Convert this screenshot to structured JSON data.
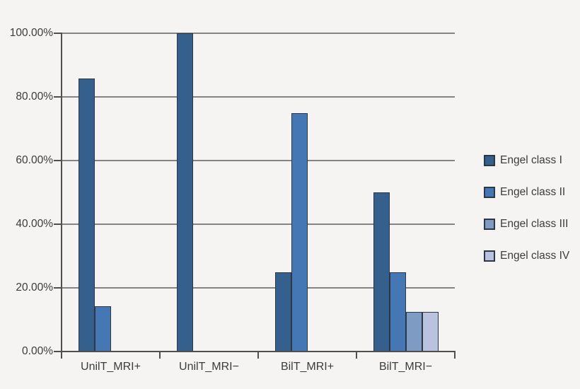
{
  "figure": {
    "background_color": "#F5F4F2",
    "axis_color": "#4F4F4F",
    "gridline_color": "#848484",
    "bar_outline_color": "#2C3744",
    "text_color": "#3C3C3C"
  },
  "chart_data": {
    "type": "bar",
    "title": "",
    "xlabel": "",
    "ylabel": "",
    "grid": true,
    "legend_position": "right",
    "categories": [
      "UnilT_MRI+",
      "UnilT_MRI−",
      "BilT_MRI+",
      "BilT_MRI−"
    ],
    "series": [
      {
        "name": "Engel class I",
        "color": "#35608E",
        "values": [
          85.7,
          100,
          25,
          50
        ]
      },
      {
        "name": "Engel class II",
        "color": "#4477B4",
        "values": [
          14.3,
          0,
          75,
          25
        ]
      },
      {
        "name": "Engel class III",
        "color": "#7E9BC4",
        "values": [
          0,
          0,
          0,
          12.5
        ]
      },
      {
        "name": "Engel class IV",
        "color": "#B9C3E0",
        "values": [
          0,
          0,
          0,
          12.5
        ]
      }
    ],
    "y_axis": {
      "min": 0,
      "max": 100,
      "step": 20,
      "tick_labels": [
        "0.00%",
        "20.00%",
        "40.00%",
        "60.00%",
        "80.00%",
        "100.00%"
      ]
    }
  }
}
